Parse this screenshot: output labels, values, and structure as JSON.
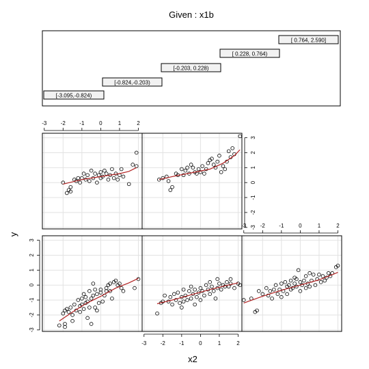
{
  "chart_data": {
    "type": "scatter",
    "title": "Given : x1b",
    "xlabel": "x2",
    "ylabel": "y",
    "xlim": [
      -3.1,
      2.2
    ],
    "ylim": [
      -3.1,
      3.3
    ],
    "xticks": [
      "-3",
      "-2",
      "-1",
      "0",
      "1",
      "2"
    ],
    "yticks": [
      "-3",
      "-2",
      "-1",
      "0",
      "1",
      "2",
      "3"
    ],
    "grid": true,
    "given_intervals": [
      "[-3.095,-0.824)",
      "[-0.824,-0.203)",
      "[-0.203, 0.228)",
      "[ 0.228, 0.764)",
      "[ 0.764, 2.590]"
    ],
    "panels": [
      {
        "given": "[-3.095,-0.824)",
        "points": [
          [
            -2.2,
            -2.7
          ],
          [
            -1.9,
            -2.8
          ],
          [
            -1.9,
            -2.6
          ],
          [
            -2.0,
            -1.9
          ],
          [
            -1.9,
            -1.7
          ],
          [
            -1.8,
            -1.6
          ],
          [
            -1.7,
            -1.8
          ],
          [
            -1.6,
            -1.5
          ],
          [
            -1.5,
            -2.4
          ],
          [
            -1.5,
            -2.0
          ],
          [
            -1.4,
            -1.3
          ],
          [
            -1.3,
            -1.7
          ],
          [
            -1.2,
            -1.0
          ],
          [
            -1.1,
            -1.4
          ],
          [
            -1.1,
            -1.8
          ],
          [
            -1.0,
            -1.3
          ],
          [
            -1.0,
            -0.9
          ],
          [
            -0.9,
            -1.6
          ],
          [
            -0.9,
            -0.6
          ],
          [
            -0.8,
            -1.2
          ],
          [
            -0.8,
            -0.8
          ],
          [
            -0.7,
            -1.1
          ],
          [
            -0.7,
            -2.2
          ],
          [
            -0.6,
            -0.4
          ],
          [
            -0.6,
            -1.5
          ],
          [
            -0.5,
            -0.9
          ],
          [
            -0.5,
            -2.6
          ],
          [
            -0.4,
            -0.7
          ],
          [
            -0.4,
            0.1
          ],
          [
            -0.3,
            -1.5
          ],
          [
            -0.3,
            -0.3
          ],
          [
            -0.2,
            -1.7
          ],
          [
            -0.2,
            -0.6
          ],
          [
            -0.1,
            -1.2
          ],
          [
            0.0,
            -0.3
          ],
          [
            0.0,
            -0.5
          ],
          [
            0.1,
            -1.1
          ],
          [
            0.2,
            -0.7
          ],
          [
            0.3,
            -0.4
          ],
          [
            0.3,
            -0.2
          ],
          [
            0.4,
            0.0
          ],
          [
            0.5,
            0.1
          ],
          [
            0.5,
            -0.4
          ],
          [
            0.6,
            -0.9
          ],
          [
            0.7,
            0.2
          ],
          [
            0.8,
            0.3
          ],
          [
            0.9,
            0.0
          ],
          [
            1.0,
            0.1
          ],
          [
            1.1,
            -0.2
          ],
          [
            1.2,
            -0.4
          ],
          [
            1.8,
            -0.2
          ],
          [
            2.0,
            0.4
          ]
        ],
        "smooth": [
          [
            -2.2,
            -2.4
          ],
          [
            -1.5,
            -1.8
          ],
          [
            -0.8,
            -1.25
          ],
          [
            0.0,
            -0.75
          ],
          [
            0.8,
            -0.2
          ],
          [
            1.5,
            0.15
          ],
          [
            2.0,
            0.45
          ]
        ]
      },
      {
        "given": "[-0.824,-0.203)",
        "points": [
          [
            -2.3,
            -1.9
          ],
          [
            -2.1,
            -1.2
          ],
          [
            -1.9,
            -0.7
          ],
          [
            -1.7,
            -1.1
          ],
          [
            -1.6,
            -0.8
          ],
          [
            -1.5,
            -1.3
          ],
          [
            -1.4,
            -0.6
          ],
          [
            -1.3,
            -1.0
          ],
          [
            -1.2,
            -0.5
          ],
          [
            -1.1,
            -1.2
          ],
          [
            -1.0,
            -0.8
          ],
          [
            -0.9,
            -0.3
          ],
          [
            -0.9,
            -1.1
          ],
          [
            -0.8,
            -0.7
          ],
          [
            -0.7,
            -1.0
          ],
          [
            -0.6,
            -0.4
          ],
          [
            -0.5,
            -0.9
          ],
          [
            -0.5,
            -0.1
          ],
          [
            -0.4,
            -0.6
          ],
          [
            -0.3,
            -0.3
          ],
          [
            -0.2,
            -0.8
          ],
          [
            -0.1,
            -0.5
          ],
          [
            0.0,
            -0.2
          ],
          [
            0.0,
            -1.0
          ],
          [
            0.1,
            -0.4
          ],
          [
            0.2,
            -0.7
          ],
          [
            0.3,
            0.0
          ],
          [
            0.4,
            -0.3
          ],
          [
            0.5,
            -0.6
          ],
          [
            0.5,
            0.2
          ],
          [
            0.6,
            -0.1
          ],
          [
            0.7,
            -0.4
          ],
          [
            0.8,
            -0.9
          ],
          [
            0.9,
            -0.2
          ],
          [
            1.0,
            0.1
          ],
          [
            1.1,
            -0.3
          ],
          [
            1.2,
            0.0
          ],
          [
            1.3,
            -0.1
          ],
          [
            1.4,
            0.2
          ],
          [
            1.5,
            -0.1
          ],
          [
            1.6,
            0.1
          ],
          [
            1.8,
            -0.2
          ],
          [
            2.0,
            0.1
          ],
          [
            2.1,
            0.0
          ],
          [
            -1.0,
            -1.5
          ],
          [
            -0.3,
            -1.3
          ],
          [
            0.9,
            0.4
          ],
          [
            1.6,
            0.4
          ],
          [
            -2.0,
            -1.1
          ]
        ],
        "smooth": [
          [
            -2.3,
            -1.25
          ],
          [
            -1.5,
            -1.0
          ],
          [
            -0.5,
            -0.65
          ],
          [
            0.5,
            -0.3
          ],
          [
            1.3,
            -0.05
          ],
          [
            2.0,
            0.15
          ]
        ]
      },
      {
        "given": "[-0.203, 0.228)",
        "points": [
          [
            -3.0,
            -1.0
          ],
          [
            -2.6,
            -0.9
          ],
          [
            -2.4,
            -1.8
          ],
          [
            -2.3,
            -1.7
          ],
          [
            -2.2,
            -0.4
          ],
          [
            -2.0,
            -0.6
          ],
          [
            -1.8,
            -0.2
          ],
          [
            -1.7,
            -0.7
          ],
          [
            -1.6,
            -0.4
          ],
          [
            -1.5,
            -0.9
          ],
          [
            -1.4,
            -0.3
          ],
          [
            -1.3,
            0.0
          ],
          [
            -1.2,
            -0.6
          ],
          [
            -1.1,
            -0.3
          ],
          [
            -1.0,
            0.1
          ],
          [
            -1.0,
            -0.8
          ],
          [
            -0.9,
            -0.4
          ],
          [
            -0.8,
            0.2
          ],
          [
            -0.7,
            -0.1
          ],
          [
            -0.7,
            -0.6
          ],
          [
            -0.6,
            0.0
          ],
          [
            -0.5,
            -0.3
          ],
          [
            -0.5,
            0.3
          ],
          [
            -0.4,
            -0.2
          ],
          [
            -0.3,
            0.1
          ],
          [
            -0.3,
            0.5
          ],
          [
            -0.2,
            -0.1
          ],
          [
            -0.2,
            0.4
          ],
          [
            -0.1,
            1.0
          ],
          [
            0.0,
            0.2
          ],
          [
            0.0,
            -0.4
          ],
          [
            0.1,
            0.0
          ],
          [
            0.2,
            0.3
          ],
          [
            0.3,
            -0.2
          ],
          [
            0.3,
            0.6
          ],
          [
            0.4,
            0.1
          ],
          [
            0.5,
            -0.1
          ],
          [
            0.5,
            0.8
          ],
          [
            0.6,
            0.3
          ],
          [
            0.7,
            0.7
          ],
          [
            0.8,
            0.0
          ],
          [
            0.9,
            0.4
          ],
          [
            1.0,
            0.7
          ],
          [
            1.1,
            0.2
          ],
          [
            1.2,
            0.6
          ],
          [
            1.3,
            0.3
          ],
          [
            1.4,
            0.5
          ],
          [
            1.5,
            0.8
          ],
          [
            1.6,
            0.6
          ],
          [
            1.7,
            0.8
          ],
          [
            1.9,
            1.2
          ],
          [
            2.0,
            1.3
          ]
        ],
        "smooth": [
          [
            -3.0,
            -1.2
          ],
          [
            -2.0,
            -0.75
          ],
          [
            -1.0,
            -0.35
          ],
          [
            0.0,
            0.0
          ],
          [
            1.0,
            0.35
          ],
          [
            1.8,
            0.75
          ],
          [
            2.0,
            0.85
          ]
        ]
      },
      {
        "given": "[ 0.228, 0.764)",
        "points": [
          [
            -2.0,
            0.0
          ],
          [
            -1.8,
            -0.7
          ],
          [
            -1.7,
            -0.5
          ],
          [
            -1.6,
            -0.3
          ],
          [
            -1.6,
            -0.6
          ],
          [
            -1.4,
            0.2
          ],
          [
            -1.3,
            0.1
          ],
          [
            -1.2,
            0.3
          ],
          [
            -1.1,
            0.0
          ],
          [
            -1.0,
            0.3
          ],
          [
            -0.9,
            0.6
          ],
          [
            -0.8,
            0.2
          ],
          [
            -0.7,
            0.5
          ],
          [
            -0.6,
            0.1
          ],
          [
            -0.5,
            0.8
          ],
          [
            -0.4,
            0.3
          ],
          [
            -0.3,
            0.6
          ],
          [
            -0.2,
            0.0
          ],
          [
            -0.1,
            0.5
          ],
          [
            0.0,
            0.7
          ],
          [
            0.0,
            0.3
          ],
          [
            0.1,
            0.4
          ],
          [
            0.2,
            0.8
          ],
          [
            0.3,
            0.6
          ],
          [
            0.4,
            0.2
          ],
          [
            0.5,
            0.5
          ],
          [
            0.6,
            0.9
          ],
          [
            0.7,
            0.3
          ],
          [
            0.8,
            0.6
          ],
          [
            0.9,
            0.2
          ],
          [
            1.0,
            0.5
          ],
          [
            1.1,
            0.9
          ],
          [
            1.2,
            0.4
          ],
          [
            1.5,
            -0.1
          ],
          [
            1.7,
            1.2
          ],
          [
            1.9,
            2.0
          ],
          [
            1.9,
            1.1
          ]
        ],
        "smooth": [
          [
            -2.0,
            -0.1
          ],
          [
            -1.0,
            0.2
          ],
          [
            0.0,
            0.4
          ],
          [
            1.0,
            0.6
          ],
          [
            1.5,
            0.75
          ],
          [
            1.9,
            1.0
          ]
        ]
      },
      {
        "given": "[ 0.764, 2.590]",
        "points": [
          [
            -2.2,
            0.2
          ],
          [
            -2.0,
            0.3
          ],
          [
            -1.8,
            0.4
          ],
          [
            -1.7,
            0.1
          ],
          [
            -1.6,
            -0.5
          ],
          [
            -1.5,
            -0.3
          ],
          [
            -1.3,
            0.6
          ],
          [
            -1.2,
            0.5
          ],
          [
            -1.0,
            0.9
          ],
          [
            -0.9,
            0.5
          ],
          [
            -0.8,
            0.8
          ],
          [
            -0.7,
            1.0
          ],
          [
            -0.6,
            0.6
          ],
          [
            -0.5,
            1.2
          ],
          [
            -0.4,
            1.0
          ],
          [
            -0.3,
            0.7
          ],
          [
            -0.2,
            0.6
          ],
          [
            -0.1,
            0.9
          ],
          [
            0.0,
            0.7
          ],
          [
            0.1,
            1.1
          ],
          [
            0.2,
            0.6
          ],
          [
            0.3,
            0.9
          ],
          [
            0.4,
            1.3
          ],
          [
            0.5,
            1.5
          ],
          [
            0.6,
            1.6
          ],
          [
            0.7,
            1.2
          ],
          [
            0.8,
            1.0
          ],
          [
            0.9,
            1.4
          ],
          [
            1.0,
            1.8
          ],
          [
            1.1,
            0.7
          ],
          [
            1.2,
            1.1
          ],
          [
            1.3,
            0.9
          ],
          [
            1.4,
            1.4
          ],
          [
            1.5,
            2.1
          ],
          [
            1.6,
            1.7
          ],
          [
            1.7,
            2.3
          ],
          [
            1.8,
            1.9
          ],
          [
            2.1,
            3.1
          ]
        ],
        "smooth": [
          [
            -2.2,
            0.2
          ],
          [
            -1.5,
            0.4
          ],
          [
            -0.5,
            0.65
          ],
          [
            0.5,
            0.9
          ],
          [
            1.2,
            1.3
          ],
          [
            1.8,
            1.8
          ],
          [
            2.1,
            2.2
          ]
        ]
      }
    ]
  }
}
